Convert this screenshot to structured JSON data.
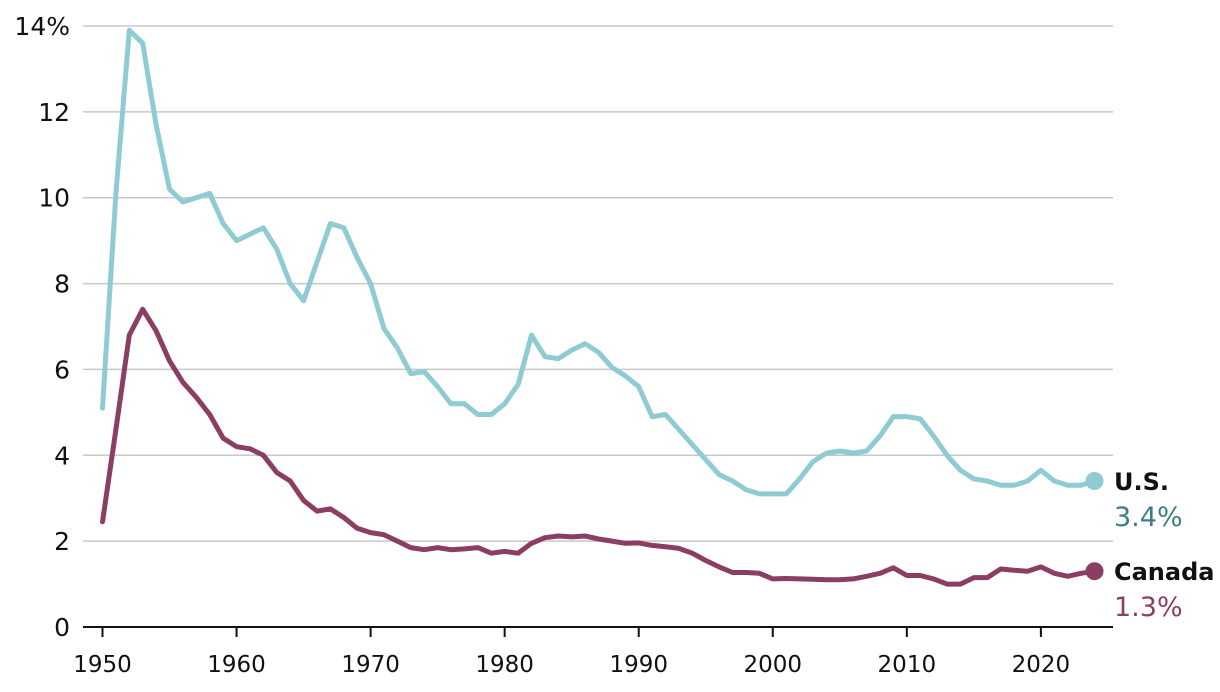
{
  "chart_data": {
    "type": "line",
    "title": "",
    "xlabel": "",
    "ylabel": "",
    "xlim": [
      1950,
      2024
    ],
    "ylim": [
      0,
      14
    ],
    "y_ticks": [
      0,
      2,
      4,
      6,
      8,
      10,
      12,
      14
    ],
    "y_tick_labels": [
      "0",
      "2",
      "4",
      "6",
      "8",
      "10",
      "12",
      "14%"
    ],
    "x_ticks": [
      1950,
      1960,
      1970,
      1980,
      1990,
      2000,
      2010,
      2020
    ],
    "x_tick_labels": [
      "1950",
      "1960",
      "1970",
      "1980",
      "1990",
      "2000",
      "2010",
      "2020"
    ],
    "grid": true,
    "x": [
      1950,
      1951,
      1952,
      1953,
      1954,
      1955,
      1956,
      1957,
      1958,
      1959,
      1960,
      1961,
      1962,
      1963,
      1964,
      1965,
      1966,
      1967,
      1968,
      1969,
      1970,
      1971,
      1972,
      1973,
      1974,
      1975,
      1976,
      1977,
      1978,
      1979,
      1980,
      1981,
      1982,
      1983,
      1984,
      1985,
      1986,
      1987,
      1988,
      1989,
      1990,
      1991,
      1992,
      1993,
      1994,
      1995,
      1996,
      1997,
      1998,
      1999,
      2000,
      2001,
      2002,
      2003,
      2004,
      2005,
      2006,
      2007,
      2008,
      2009,
      2010,
      2011,
      2012,
      2013,
      2014,
      2015,
      2016,
      2017,
      2018,
      2019,
      2020,
      2021,
      2022,
      2023,
      2024
    ],
    "series": [
      {
        "name": "U.S.",
        "end_label": "3.4%",
        "color": "#8ecbd2",
        "label_color": "#3f7c86",
        "values": [
          5.1,
          10.1,
          13.9,
          13.6,
          11.7,
          10.2,
          9.9,
          10.0,
          10.1,
          9.4,
          9.0,
          9.15,
          9.3,
          8.8,
          8.0,
          7.6,
          8.5,
          9.4,
          9.3,
          8.6,
          8.0,
          6.95,
          6.5,
          5.9,
          5.95,
          5.6,
          5.2,
          5.2,
          4.95,
          4.95,
          5.2,
          5.65,
          6.8,
          6.3,
          6.25,
          6.45,
          6.6,
          6.4,
          6.05,
          5.85,
          5.6,
          4.9,
          4.95,
          4.6,
          4.25,
          3.9,
          3.55,
          3.4,
          3.2,
          3.1,
          3.1,
          3.1,
          3.45,
          3.85,
          4.05,
          4.1,
          4.05,
          4.1,
          4.45,
          4.9,
          4.9,
          4.85,
          4.45,
          4.0,
          3.65,
          3.45,
          3.4,
          3.3,
          3.3,
          3.4,
          3.65,
          3.4,
          3.3,
          3.3,
          3.4
        ]
      },
      {
        "name": "Canada",
        "end_label": "1.3%",
        "color": "#8b3d62",
        "label_color": "#8b3d62",
        "values": [
          2.45,
          4.6,
          6.8,
          7.4,
          6.9,
          6.2,
          5.7,
          5.35,
          4.95,
          4.4,
          4.2,
          4.15,
          4.0,
          3.6,
          3.4,
          2.95,
          2.7,
          2.75,
          2.55,
          2.3,
          2.2,
          2.15,
          2.0,
          1.85,
          1.8,
          1.85,
          1.8,
          1.82,
          1.85,
          1.72,
          1.76,
          1.72,
          1.95,
          2.08,
          2.12,
          2.1,
          2.12,
          2.05,
          2.0,
          1.95,
          1.96,
          1.9,
          1.87,
          1.83,
          1.72,
          1.55,
          1.4,
          1.27,
          1.27,
          1.25,
          1.12,
          1.13,
          1.12,
          1.11,
          1.1,
          1.1,
          1.12,
          1.18,
          1.25,
          1.38,
          1.2,
          1.2,
          1.12,
          1.0,
          1.0,
          1.15,
          1.15,
          1.35,
          1.32,
          1.3,
          1.4,
          1.25,
          1.18,
          1.25,
          1.3
        ]
      }
    ]
  }
}
